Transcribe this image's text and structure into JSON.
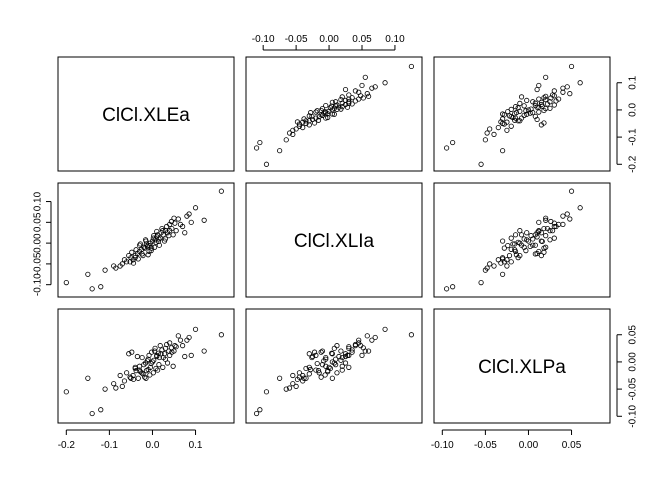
{
  "chart_data": {
    "type": "scatter",
    "variables": [
      "ClCl.XLEa",
      "ClCl.XLIa",
      "ClCl.XLPa"
    ],
    "axes": {
      "ClCl.XLEa": {
        "ticks": [
          -0.2,
          -0.1,
          0.0,
          0.1
        ],
        "tick_labels": [
          "-0.2",
          "-0.1",
          "0.0",
          "0.1"
        ],
        "range": [
          -0.21,
          0.18
        ]
      },
      "ClCl.XLIa": {
        "ticks": [
          -0.1,
          -0.05,
          0.0,
          0.05,
          0.1
        ],
        "tick_labels": [
          "-0.10",
          "-0.05",
          "0.00",
          "0.05",
          "0.10"
        ],
        "range": [
          -0.12,
          0.135
        ]
      },
      "ClCl.XLPa": {
        "ticks": [
          -0.1,
          -0.05,
          0.0,
          0.05
        ],
        "tick_labels": [
          "-0.10",
          "-0.05",
          "0.00",
          "0.05"
        ],
        "range": [
          -0.105,
          0.09
        ]
      }
    },
    "axis_sides": {
      "top": [
        "ClCl.XLIa"
      ],
      "right": [
        "ClCl.XLEa",
        "ClCl.XLPa"
      ],
      "bottom": [
        "ClCl.XLEa",
        "ClCl.XLPa"
      ],
      "left": [
        "ClCl.XLIa"
      ]
    },
    "points": [
      [
        0.16,
        0.125,
        0.05
      ],
      [
        -0.2,
        -0.095,
        -0.055
      ],
      [
        -0.14,
        -0.11,
        -0.095
      ],
      [
        -0.12,
        -0.105,
        -0.088
      ],
      [
        -0.15,
        -0.075,
        -0.03
      ],
      [
        0.1,
        0.085,
        0.06
      ],
      [
        0.08,
        0.065,
        0.04
      ],
      [
        0.06,
        0.058,
        0.048
      ],
      [
        -0.11,
        -0.065,
        -0.05
      ],
      [
        -0.09,
        -0.055,
        -0.04
      ],
      [
        0.12,
        0.055,
        0.02
      ],
      [
        -0.07,
        -0.05,
        -0.045
      ],
      [
        0.05,
        0.06,
        0.02
      ],
      [
        0.07,
        0.04,
        0.03
      ],
      [
        -0.06,
        -0.045,
        -0.02
      ],
      [
        0.09,
        0.05,
        0.012
      ],
      [
        0.04,
        0.045,
        0.035
      ],
      [
        -0.05,
        -0.035,
        -0.03
      ],
      [
        0.03,
        0.03,
        0.025
      ],
      [
        -0.04,
        -0.03,
        -0.01
      ],
      [
        0.02,
        0.025,
        0.015
      ],
      [
        -0.03,
        -0.02,
        -0.015
      ],
      [
        0.01,
        0.015,
        0.01
      ],
      [
        -0.02,
        -0.01,
        -0.005
      ],
      [
        0.0,
        0.005,
        0.0
      ],
      [
        -0.01,
        -0.005,
        0.005
      ],
      [
        0.015,
        0.01,
        -0.005
      ],
      [
        -0.005,
        0.0,
        -0.01
      ],
      [
        0.025,
        0.02,
        0.008
      ],
      [
        -0.025,
        -0.015,
        -0.02
      ],
      [
        0.035,
        0.025,
        -0.002
      ],
      [
        -0.035,
        -0.025,
        0.01
      ],
      [
        0.045,
        0.035,
        0.018
      ],
      [
        -0.045,
        -0.04,
        -0.025
      ],
      [
        0.055,
        0.03,
        0.028
      ],
      [
        -0.055,
        -0.03,
        0.015
      ],
      [
        0.005,
        -0.01,
        0.02
      ],
      [
        -0.015,
        0.005,
        -0.03
      ],
      [
        0.012,
        0.02,
        -0.015
      ],
      [
        -0.008,
        -0.02,
        0.012
      ],
      [
        0.03,
        0.01,
        0.005
      ],
      [
        -0.03,
        -0.005,
        -0.008
      ],
      [
        0.022,
        0.035,
        0.022
      ],
      [
        -0.022,
        -0.03,
        -0.022
      ],
      [
        0.008,
        0.002,
        -0.012
      ],
      [
        -0.012,
        -0.008,
        0.002
      ],
      [
        0.04,
        0.03,
        0.012
      ],
      [
        -0.04,
        -0.035,
        -0.012
      ],
      [
        0.018,
        0.012,
        0.03
      ],
      [
        -0.018,
        -0.012,
        -0.028
      ],
      [
        0.065,
        0.045,
        0.04
      ],
      [
        -0.065,
        -0.04,
        -0.035
      ],
      [
        0.003,
        0.018,
        0.003
      ],
      [
        -0.003,
        -0.018,
        -0.003
      ],
      [
        0.028,
        0.005,
        0.015
      ],
      [
        -0.028,
        -0.002,
        -0.018
      ],
      [
        0.048,
        0.02,
        -0.008
      ],
      [
        -0.048,
        -0.022,
        0.018
      ],
      [
        0.01,
        0.028,
        0.012
      ],
      [
        -0.01,
        -0.028,
        -0.014
      ],
      [
        0.075,
        0.025,
        0.01
      ],
      [
        -0.075,
        -0.055,
        -0.025
      ],
      [
        0.006,
        0.008,
        0.025
      ],
      [
        -0.006,
        -0.006,
        -0.024
      ],
      [
        0.033,
        0.04,
        0.032
      ],
      [
        -0.033,
        -0.038,
        -0.03
      ],
      [
        0.016,
        -0.005,
        0.008
      ],
      [
        -0.016,
        0.008,
        -0.002
      ],
      [
        0.052,
        0.048,
        0.03
      ],
      [
        -0.052,
        -0.045,
        -0.028
      ],
      [
        0.002,
        0.012,
        -0.02
      ],
      [
        -0.002,
        -0.012,
        0.018
      ],
      [
        0.038,
        0.018,
        0.02
      ],
      [
        -0.038,
        -0.016,
        -0.016
      ],
      [
        0.024,
        0.03,
        -0.01
      ],
      [
        -0.024,
        -0.026,
        0.008
      ],
      [
        0.085,
        0.07,
        0.045
      ],
      [
        -0.085,
        -0.06,
        -0.048
      ],
      [
        0.014,
        0.004,
        0.016
      ],
      [
        -0.014,
        -0.002,
        -0.016
      ],
      [
        0.044,
        0.052,
        0.026
      ],
      [
        -0.044,
        -0.048,
        -0.032
      ]
    ]
  }
}
